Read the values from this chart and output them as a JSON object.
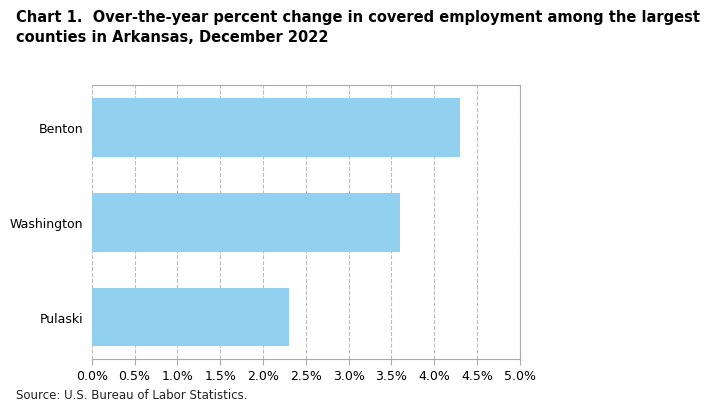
{
  "title_line1": "Chart 1.  Over-the-year percent change in covered employment among the largest",
  "title_line2": "counties in Arkansas, December 2022",
  "categories": [
    "Pulaski",
    "Washington",
    "Benton"
  ],
  "values": [
    2.3,
    3.6,
    4.3
  ],
  "bar_color": "#92D0F0",
  "xlim": [
    0.0,
    0.05
  ],
  "xticks": [
    0.0,
    0.005,
    0.01,
    0.015,
    0.02,
    0.025,
    0.03,
    0.035,
    0.04,
    0.045,
    0.05
  ],
  "xtick_labels": [
    "0.0%",
    "0.5%",
    "1.0%",
    "1.5%",
    "2.0%",
    "2.5%",
    "3.0%",
    "3.5%",
    "4.0%",
    "4.5%",
    "5.0%"
  ],
  "source": "Source: U.S. Bureau of Labor Statistics.",
  "background_color": "#ffffff",
  "title_fontsize": 10.5,
  "tick_fontsize": 9,
  "source_fontsize": 8.5,
  "bar_height": 0.62,
  "spine_color": "#aaaaaa",
  "grid_color": "#bbbbbb"
}
